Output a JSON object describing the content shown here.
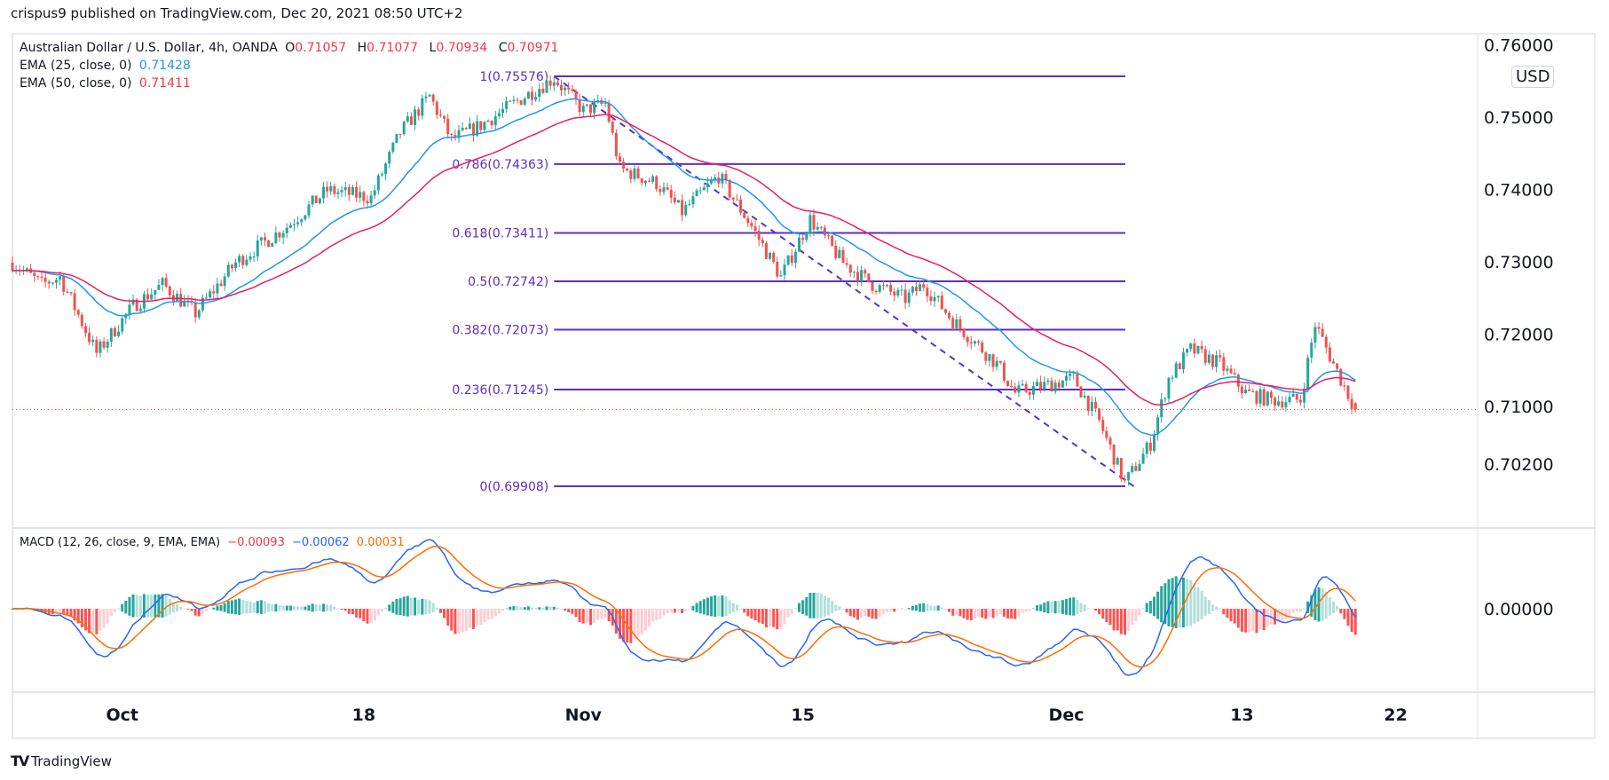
{
  "header": {
    "published": "crispus9 published on TradingView.com, Dec 20, 2021 08:50 UTC+2"
  },
  "legend": {
    "symbol": "Australian Dollar / U.S. Dollar, 4h, OANDA",
    "o_label": "O",
    "o": "0.71057",
    "h_label": "H",
    "h": "0.71077",
    "l_label": "L",
    "l": "0.70934",
    "c_label": "C",
    "c": "0.70971",
    "ema25_label": "EMA (25, close, 0)",
    "ema25": "0.71428",
    "ema50_label": "EMA (50, close, 0)",
    "ema50": "0.71411",
    "macd_label": "MACD (12, 26, close, 9, EMA, EMA)",
    "macd_hist": "−0.00093",
    "macd": "−0.00062",
    "macd_signal": "0.00031"
  },
  "currency_button": "USD",
  "footer": {
    "brand": "TradingView",
    "logo": "TV"
  },
  "colors": {
    "up": "#26a69a",
    "down": "#ef5350",
    "ema25": "#2196f3",
    "ema50": "#e91e63",
    "fib": "#5b2fc9",
    "macd": "#2962ff",
    "signal": "#ff6d00",
    "hist_up_strong": "#26a69a",
    "hist_up_weak": "#b2dfdb",
    "hist_down_strong": "#ff5252",
    "hist_down_weak": "#ffcdd2",
    "last_price": "#f23645"
  },
  "chart_data": {
    "type": "candlestick",
    "symbol": "AUDUSD",
    "timeframe": "4h",
    "ylim": [
      0.6935,
      0.7595
    ],
    "y_ticks": [
      "0.76000",
      "0.75000",
      "0.74000",
      "0.73000",
      "0.72000",
      "0.71000",
      "0.70200"
    ],
    "y_tick_values": [
      0.76,
      0.75,
      0.74,
      0.73,
      0.72,
      0.71,
      0.702
    ],
    "x_ticks": [
      {
        "label": "Oct",
        "date": "2021-10-01 00"
      },
      {
        "label": "18",
        "date": "2021-10-18 00"
      },
      {
        "label": "Nov",
        "date": "2021-11-01 00"
      },
      {
        "label": "15",
        "date": "2021-11-15 00"
      },
      {
        "label": "Dec",
        "date": "2021-12-01 00"
      },
      {
        "label": "13",
        "date": "2021-12-13 00"
      },
      {
        "label": "22",
        "date": "2021-12-22 00"
      }
    ],
    "last_price": 0.70971,
    "approx_closes": [
      [
        "2021-09-24 00",
        0.73
      ],
      [
        "2021-09-27 08",
        0.727
      ],
      [
        "2021-09-28 04",
        0.728
      ],
      [
        "2021-09-29 20",
        0.7175
      ],
      [
        "2021-10-01 12",
        0.724
      ],
      [
        "2021-10-04 20",
        0.727
      ],
      [
        "2021-10-06 08",
        0.723
      ],
      [
        "2021-10-08 04",
        0.73
      ],
      [
        "2021-10-12 12",
        0.735
      ],
      [
        "2021-10-14 08",
        0.74
      ],
      [
        "2021-10-18 08",
        0.739
      ],
      [
        "2021-10-19 16",
        0.748
      ],
      [
        "2021-10-21 00",
        0.753
      ],
      [
        "2021-10-22 00",
        0.747
      ],
      [
        "2021-10-25 08",
        0.749
      ],
      [
        "2021-10-27 08",
        0.753
      ],
      [
        "2021-10-28 16",
        0.7555
      ],
      [
        "2021-11-01 00",
        0.751
      ],
      [
        "2021-11-02 00",
        0.752
      ],
      [
        "2021-11-02 16",
        0.743
      ],
      [
        "2021-11-04 08",
        0.741
      ],
      [
        "2021-11-05 12",
        0.737
      ],
      [
        "2021-11-09 04",
        0.742
      ],
      [
        "2021-11-10 16",
        0.735
      ],
      [
        "2021-11-12 00",
        0.728
      ],
      [
        "2021-11-15 08",
        0.736
      ],
      [
        "2021-11-16 20",
        0.73
      ],
      [
        "2021-11-18 04",
        0.727
      ],
      [
        "2021-11-19 16",
        0.725
      ],
      [
        "2021-11-22 12",
        0.727
      ],
      [
        "2021-11-23 20",
        0.722
      ],
      [
        "2021-11-25 20",
        0.716
      ],
      [
        "2021-11-26 16",
        0.712
      ],
      [
        "2021-11-30 00",
        0.713
      ],
      [
        "2021-12-01 08",
        0.714
      ],
      [
        "2021-12-02 12",
        0.708
      ],
      [
        "2021-12-03 16",
        0.6995
      ],
      [
        "2021-12-06 20",
        0.705
      ],
      [
        "2021-12-07 16",
        0.714
      ],
      [
        "2021-12-08 16",
        0.718
      ],
      [
        "2021-12-10 00",
        0.716
      ],
      [
        "2021-12-13 04",
        0.712
      ],
      [
        "2021-12-14 08",
        0.711
      ],
      [
        "2021-12-15 16",
        0.711
      ],
      [
        "2021-12-16 08",
        0.7215
      ],
      [
        "2021-12-17 04",
        0.716
      ],
      [
        "2021-12-20 04",
        0.7097
      ]
    ],
    "fibonacci": {
      "from": {
        "date": "2021-10-28 16",
        "price": 0.75576
      },
      "to": {
        "date": "2021-12-03 16",
        "price": 0.69908
      },
      "levels": [
        {
          "label": "1(0.75576)",
          "price": 0.75576
        },
        {
          "label": "0.786(0.74363)",
          "price": 0.74363
        },
        {
          "label": "0.618(0.73411)",
          "price": 0.73411
        },
        {
          "label": "0.5(0.72742)",
          "price": 0.72742
        },
        {
          "label": "0.382(0.72073)",
          "price": 0.72073
        },
        {
          "label": "0.236(0.71245)",
          "price": 0.71245
        },
        {
          "label": "0(0.69908)",
          "price": 0.69908
        }
      ]
    },
    "macd_axis_tick": "0.00000"
  }
}
